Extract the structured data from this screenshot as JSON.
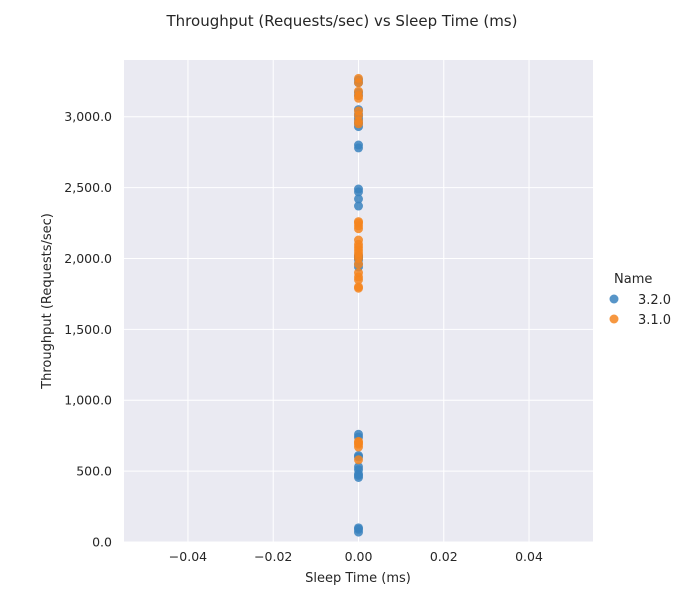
{
  "chart_data": {
    "type": "scatter",
    "title": "Throughput (Requests/sec) vs Sleep Time (ms)",
    "xlabel": "Sleep Time (ms)",
    "ylabel": "Throughput (Requests/sec)",
    "xlim": [
      -0.055,
      0.055
    ],
    "ylim": [
      0,
      3400
    ],
    "xticks": [
      -0.04,
      -0.02,
      0.0,
      0.02,
      0.04
    ],
    "xtick_labels": [
      "−0.04",
      "−0.02",
      "0.00",
      "0.02",
      "0.04"
    ],
    "yticks": [
      0,
      500,
      1000,
      1500,
      2000,
      2500,
      3000
    ],
    "ytick_labels": [
      "0.0",
      "500.0",
      "1,000.0",
      "1,500.0",
      "2,000.0",
      "2,500.0",
      "3,000.0"
    ],
    "grid": true,
    "legend_title": "Name",
    "legend_position": "right",
    "series": [
      {
        "name": "3.2.0",
        "color": "#3a83be",
        "x": [
          0,
          0,
          0,
          0,
          0,
          0,
          0,
          0,
          0,
          0,
          0,
          0,
          0,
          0,
          0,
          0,
          0,
          0,
          0,
          0,
          0,
          0,
          0,
          0,
          0,
          0,
          0,
          0,
          0,
          0,
          0,
          0,
          0,
          0,
          0,
          0
        ],
        "y": [
          70,
          90,
          100,
          455,
          470,
          510,
          530,
          600,
          610,
          740,
          760,
          1940,
          1960,
          1990,
          2000,
          2010,
          2020,
          2370,
          2420,
          2470,
          2490,
          2780,
          2800,
          2930,
          2950,
          2980,
          3000,
          3020,
          3050,
          3150,
          3170,
          3240,
          3260,
          2960,
          2010,
          480
        ]
      },
      {
        "name": "3.1.0",
        "color": "#f5851f",
        "x": [
          0,
          0,
          0,
          0,
          0,
          0,
          0,
          0,
          0,
          0,
          0,
          0,
          0,
          0,
          0,
          0,
          0,
          0,
          0,
          0,
          0,
          0,
          0,
          0,
          0,
          0,
          0,
          0,
          0,
          0,
          0
        ],
        "y": [
          580,
          670,
          690,
          700,
          710,
          1790,
          1800,
          1850,
          1870,
          1900,
          1960,
          2000,
          2020,
          2040,
          2060,
          2080,
          2100,
          2130,
          2210,
          2230,
          2250,
          2260,
          2950,
          2970,
          3010,
          3040,
          3130,
          3150,
          3180,
          3240,
          3270
        ]
      }
    ]
  }
}
